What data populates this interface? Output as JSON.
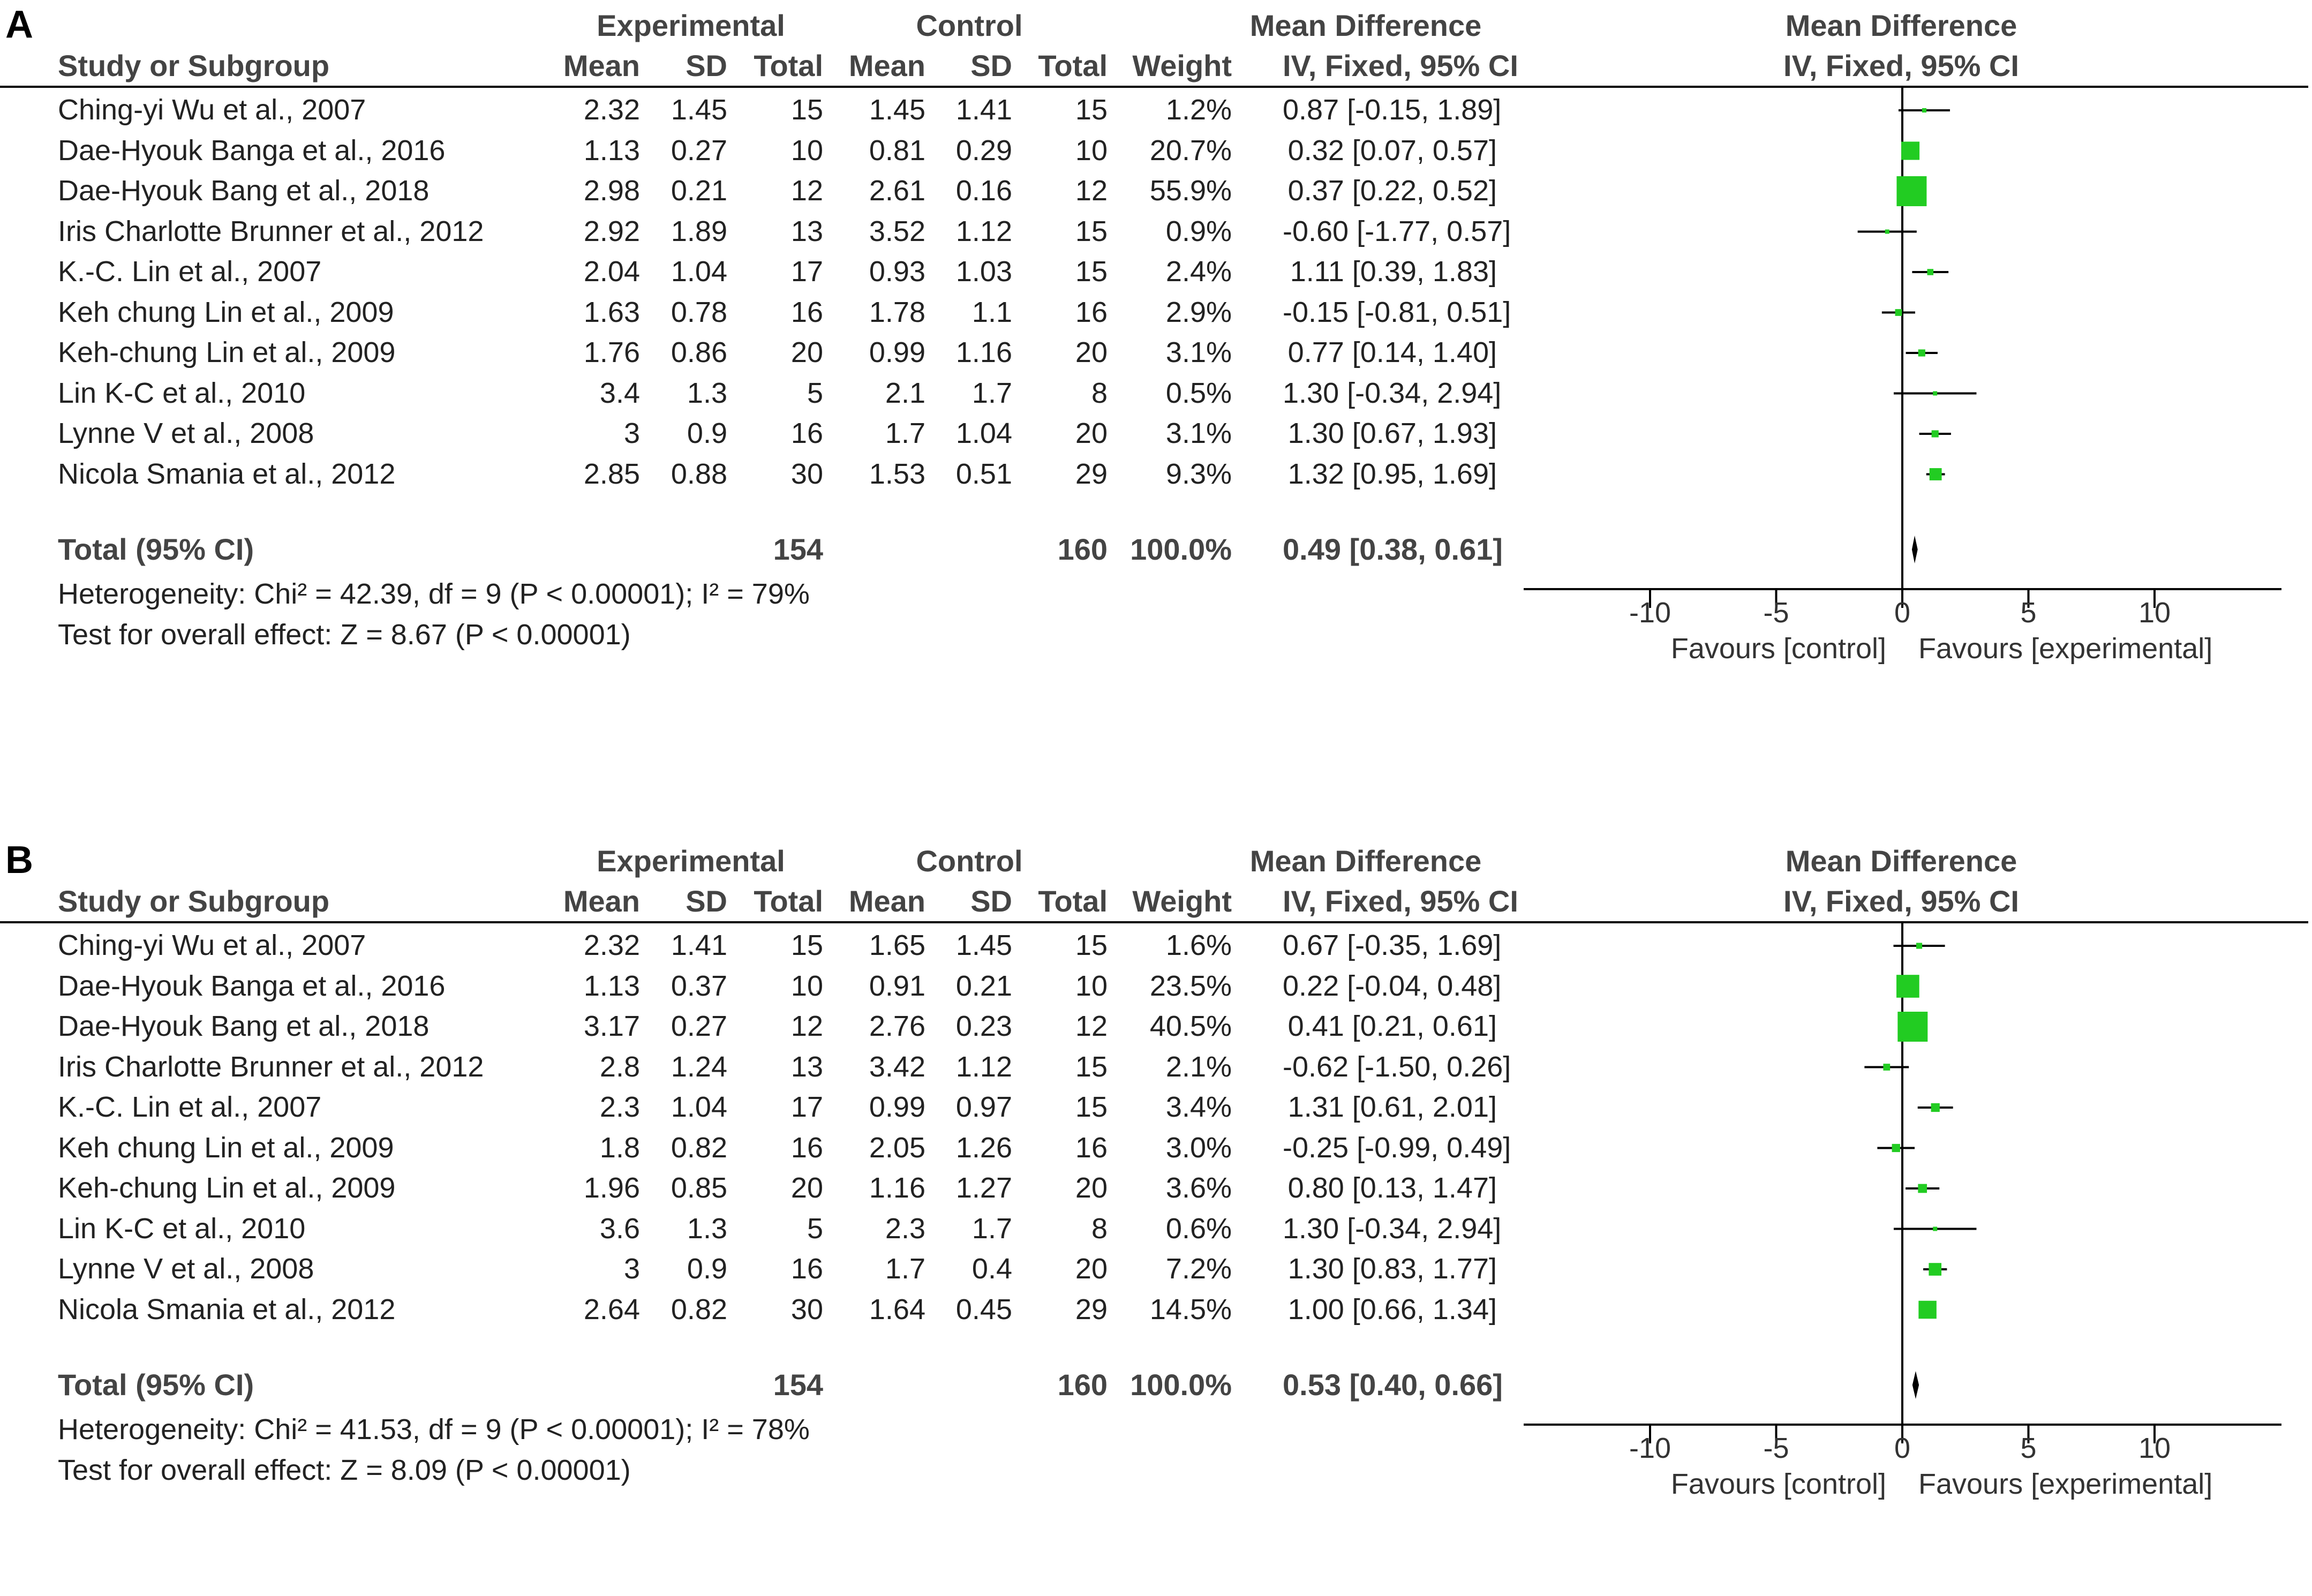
{
  "headers": {
    "group_experimental": "Experimental",
    "group_control": "Control",
    "group_md": "Mean Difference",
    "col_study": "Study or Subgroup",
    "col_mean": "Mean",
    "col_sd": "SD",
    "col_total": "Total",
    "col_weight": "Weight",
    "col_ci": "IV, Fixed, 95% CI",
    "plot_title": "Mean Difference",
    "plot_subtitle": "IV, Fixed, 95% CI"
  },
  "colors": {
    "marker": "#22cc22",
    "line": "#000000"
  },
  "chart_data": [
    {
      "type": "forest",
      "panel": "A",
      "rows": [
        {
          "study": "Ching-yi Wu et al., 2007",
          "e_mean": "2.32",
          "e_sd": "1.45",
          "e_total": "15",
          "c_mean": "1.45",
          "c_sd": "1.41",
          "c_total": "15",
          "weight": "1.2%",
          "ci_text": "0.87 [-0.15, 1.89]",
          "md": 0.87,
          "lo": -0.15,
          "hi": 1.89,
          "w": 1.2
        },
        {
          "study": "Dae-Hyouk Banga et al., 2016",
          "e_mean": "1.13",
          "e_sd": "0.27",
          "e_total": "10",
          "c_mean": "0.81",
          "c_sd": "0.29",
          "c_total": "10",
          "weight": "20.7%",
          "ci_text": "0.32 [0.07, 0.57]",
          "md": 0.32,
          "lo": 0.07,
          "hi": 0.57,
          "w": 20.7
        },
        {
          "study": "Dae-Hyouk Bang et al., 2018",
          "e_mean": "2.98",
          "e_sd": "0.21",
          "e_total": "12",
          "c_mean": "2.61",
          "c_sd": "0.16",
          "c_total": "12",
          "weight": "55.9%",
          "ci_text": "0.37 [0.22, 0.52]",
          "md": 0.37,
          "lo": 0.22,
          "hi": 0.52,
          "w": 55.9
        },
        {
          "study": "Iris Charlotte Brunner et al., 2012",
          "e_mean": "2.92",
          "e_sd": "1.89",
          "e_total": "13",
          "c_mean": "3.52",
          "c_sd": "1.12",
          "c_total": "15",
          "weight": "0.9%",
          "ci_text": "-0.60 [-1.77, 0.57]",
          "md": -0.6,
          "lo": -1.77,
          "hi": 0.57,
          "w": 0.9
        },
        {
          "study": "K.-C. Lin et al., 2007",
          "e_mean": "2.04",
          "e_sd": "1.04",
          "e_total": "17",
          "c_mean": "0.93",
          "c_sd": "1.03",
          "c_total": "15",
          "weight": "2.4%",
          "ci_text": "1.11 [0.39, 1.83]",
          "md": 1.11,
          "lo": 0.39,
          "hi": 1.83,
          "w": 2.4
        },
        {
          "study": "Keh chung Lin et al., 2009",
          "e_mean": "1.63",
          "e_sd": "0.78",
          "e_total": "16",
          "c_mean": "1.78",
          "c_sd": "1.1",
          "c_total": "16",
          "weight": "2.9%",
          "ci_text": "-0.15 [-0.81, 0.51]",
          "md": -0.15,
          "lo": -0.81,
          "hi": 0.51,
          "w": 2.9
        },
        {
          "study": "Keh-chung Lin et al., 2009",
          "e_mean": "1.76",
          "e_sd": "0.86",
          "e_total": "20",
          "c_mean": "0.99",
          "c_sd": "1.16",
          "c_total": "20",
          "weight": "3.1%",
          "ci_text": "0.77 [0.14, 1.40]",
          "md": 0.77,
          "lo": 0.14,
          "hi": 1.4,
          "w": 3.1
        },
        {
          "study": "Lin K-C et al., 2010",
          "e_mean": "3.4",
          "e_sd": "1.3",
          "e_total": "5",
          "c_mean": "2.1",
          "c_sd": "1.7",
          "c_total": "8",
          "weight": "0.5%",
          "ci_text": "1.30 [-0.34, 2.94]",
          "md": 1.3,
          "lo": -0.34,
          "hi": 2.94,
          "w": 0.5
        },
        {
          "study": "Lynne V et al., 2008",
          "e_mean": "3",
          "e_sd": "0.9",
          "e_total": "16",
          "c_mean": "1.7",
          "c_sd": "1.04",
          "c_total": "20",
          "weight": "3.1%",
          "ci_text": "1.30 [0.67, 1.93]",
          "md": 1.3,
          "lo": 0.67,
          "hi": 1.93,
          "w": 3.1
        },
        {
          "study": "Nicola Smania et al., 2012",
          "e_mean": "2.85",
          "e_sd": "0.88",
          "e_total": "30",
          "c_mean": "1.53",
          "c_sd": "0.51",
          "c_total": "29",
          "weight": "9.3%",
          "ci_text": "1.32 [0.95, 1.69]",
          "md": 1.32,
          "lo": 0.95,
          "hi": 1.69,
          "w": 9.3
        }
      ],
      "total": {
        "label": "Total (95% CI)",
        "e_total": "154",
        "c_total": "160",
        "weight": "100.0%",
        "ci_text": "0.49 [0.38, 0.61]",
        "md": 0.49,
        "lo": 0.38,
        "hi": 0.61
      },
      "heterogeneity": "Heterogeneity: Chi² = 42.39, df = 9 (P < 0.00001); I² = 79%",
      "overall_test": "Test for overall effect: Z = 8.67 (P < 0.00001)",
      "x_axis": {
        "range": [
          -15,
          15
        ],
        "ticks": [
          -10,
          -5,
          0,
          5,
          10
        ],
        "tick_labels": [
          "-10",
          "-5",
          "0",
          "5",
          "10"
        ]
      },
      "favours_left": "Favours [control]",
      "favours_right": "Favours [experimental]"
    },
    {
      "type": "forest",
      "panel": "B",
      "rows": [
        {
          "study": "Ching-yi Wu et al., 2007",
          "e_mean": "2.32",
          "e_sd": "1.41",
          "e_total": "15",
          "c_mean": "1.65",
          "c_sd": "1.45",
          "c_total": "15",
          "weight": "1.6%",
          "ci_text": "0.67 [-0.35, 1.69]",
          "md": 0.67,
          "lo": -0.35,
          "hi": 1.69,
          "w": 1.6
        },
        {
          "study": "Dae-Hyouk Banga et al., 2016",
          "e_mean": "1.13",
          "e_sd": "0.37",
          "e_total": "10",
          "c_mean": "0.91",
          "c_sd": "0.21",
          "c_total": "10",
          "weight": "23.5%",
          "ci_text": "0.22 [-0.04, 0.48]",
          "md": 0.22,
          "lo": -0.04,
          "hi": 0.48,
          "w": 23.5
        },
        {
          "study": "Dae-Hyouk Bang et al., 2018",
          "e_mean": "3.17",
          "e_sd": "0.27",
          "e_total": "12",
          "c_mean": "2.76",
          "c_sd": "0.23",
          "c_total": "12",
          "weight": "40.5%",
          "ci_text": "0.41 [0.21, 0.61]",
          "md": 0.41,
          "lo": 0.21,
          "hi": 0.61,
          "w": 40.5
        },
        {
          "study": "Iris Charlotte Brunner et al., 2012",
          "e_mean": "2.8",
          "e_sd": "1.24",
          "e_total": "13",
          "c_mean": "3.42",
          "c_sd": "1.12",
          "c_total": "15",
          "weight": "2.1%",
          "ci_text": "-0.62 [-1.50, 0.26]",
          "md": -0.62,
          "lo": -1.5,
          "hi": 0.26,
          "w": 2.1
        },
        {
          "study": "K.-C. Lin et al., 2007",
          "e_mean": "2.3",
          "e_sd": "1.04",
          "e_total": "17",
          "c_mean": "0.99",
          "c_sd": "0.97",
          "c_total": "15",
          "weight": "3.4%",
          "ci_text": "1.31 [0.61, 2.01]",
          "md": 1.31,
          "lo": 0.61,
          "hi": 2.01,
          "w": 3.4
        },
        {
          "study": "Keh chung Lin et al., 2009",
          "e_mean": "1.8",
          "e_sd": "0.82",
          "e_total": "16",
          "c_mean": "2.05",
          "c_sd": "1.26",
          "c_total": "16",
          "weight": "3.0%",
          "ci_text": "-0.25 [-0.99, 0.49]",
          "md": -0.25,
          "lo": -0.99,
          "hi": 0.49,
          "w": 3.0
        },
        {
          "study": "Keh-chung Lin et al., 2009",
          "e_mean": "1.96",
          "e_sd": "0.85",
          "e_total": "20",
          "c_mean": "1.16",
          "c_sd": "1.27",
          "c_total": "20",
          "weight": "3.6%",
          "ci_text": "0.80 [0.13, 1.47]",
          "md": 0.8,
          "lo": 0.13,
          "hi": 1.47,
          "w": 3.6
        },
        {
          "study": "Lin K-C et al., 2010",
          "e_mean": "3.6",
          "e_sd": "1.3",
          "e_total": "5",
          "c_mean": "2.3",
          "c_sd": "1.7",
          "c_total": "8",
          "weight": "0.6%",
          "ci_text": "1.30 [-0.34, 2.94]",
          "md": 1.3,
          "lo": -0.34,
          "hi": 2.94,
          "w": 0.6
        },
        {
          "study": "Lynne V et al., 2008",
          "e_mean": "3",
          "e_sd": "0.9",
          "e_total": "16",
          "c_mean": "1.7",
          "c_sd": "0.4",
          "c_total": "20",
          "weight": "7.2%",
          "ci_text": "1.30 [0.83, 1.77]",
          "md": 1.3,
          "lo": 0.83,
          "hi": 1.77,
          "w": 7.2
        },
        {
          "study": "Nicola Smania et al., 2012",
          "e_mean": "2.64",
          "e_sd": "0.82",
          "e_total": "30",
          "c_mean": "1.64",
          "c_sd": "0.45",
          "c_total": "29",
          "weight": "14.5%",
          "ci_text": "1.00 [0.66, 1.34]",
          "md": 1.0,
          "lo": 0.66,
          "hi": 1.34,
          "w": 14.5
        }
      ],
      "total": {
        "label": "Total (95% CI)",
        "e_total": "154",
        "c_total": "160",
        "weight": "100.0%",
        "ci_text": "0.53 [0.40, 0.66]",
        "md": 0.53,
        "lo": 0.4,
        "hi": 0.66
      },
      "heterogeneity": "Heterogeneity: Chi² = 41.53, df = 9 (P < 0.00001); I² = 78%",
      "overall_test": "Test for overall effect: Z = 8.09 (P < 0.00001)",
      "x_axis": {
        "range": [
          -15,
          15
        ],
        "ticks": [
          -10,
          -5,
          0,
          5,
          10
        ],
        "tick_labels": [
          "-10",
          "-5",
          "0",
          "5",
          "10"
        ]
      },
      "favours_left": "Favours [control]",
      "favours_right": "Favours [experimental]"
    }
  ]
}
